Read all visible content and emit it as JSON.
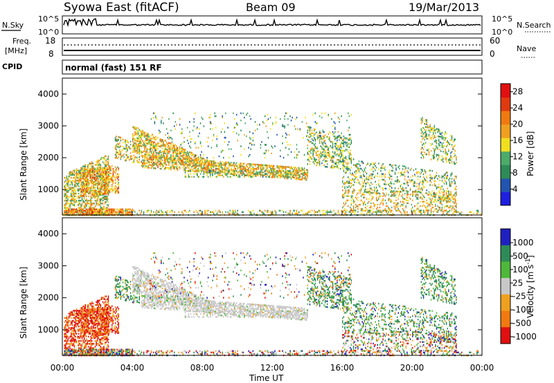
{
  "header": {
    "title": "Syowa East (fitACF)",
    "beam": "Beam 09",
    "date": "19/Mar/2013"
  },
  "top_panel": {
    "left_label": "N.Sky",
    "right_label": "N.Search",
    "scale_high": "10^5",
    "scale_low": "10^0"
  },
  "freq_panel": {
    "left_label_1": "Freq.",
    "left_label_2": "[MHz]",
    "left_ticks": [
      "18",
      "8"
    ],
    "right_ticks": [
      "60",
      "0"
    ],
    "right_label": "Nave"
  },
  "cpid_panel": {
    "label": "CPID",
    "value": "normal (fast) 151 RF"
  },
  "colors": {
    "power_scale": [
      "#1f1fe0",
      "#2255b0",
      "#2e8b57",
      "#4daa6a",
      "#f0e020",
      "#f0a020",
      "#f07a10",
      "#e03a10",
      "#e01010"
    ],
    "velocity_scale": [
      "#2020c0",
      "#2e8b57",
      "#4fb83a",
      "#c8c8c8",
      "#f0a020",
      "#f07a10",
      "#e01010"
    ]
  },
  "chart_data": [
    {
      "type": "heatmap",
      "name": "Power",
      "xlabel": "",
      "ylabel": "Slant Range [km]",
      "ylim": [
        200,
        4500
      ],
      "y_ticks": [
        "4000",
        "3000",
        "2000",
        "1000"
      ],
      "colorbar_label": "Power [dB]",
      "colorbar_ticks": [
        "28",
        "24",
        "20",
        "16",
        "12",
        "8",
        "4"
      ],
      "colorbar_range": [
        0,
        30
      ]
    },
    {
      "type": "heatmap",
      "name": "Velocity",
      "xlabel": "Time UT",
      "ylabel": "Slant Range [km]",
      "ylim": [
        200,
        4500
      ],
      "y_ticks": [
        "4000",
        "3000",
        "2000",
        "1000"
      ],
      "x_ticks": [
        "00:00",
        "04:00",
        "08:00",
        "12:00",
        "16:00",
        "20:00",
        "00:00"
      ],
      "colorbar_label": "Velocity [m s^-1]",
      "colorbar_ticks": [
        "1000",
        "500",
        "100",
        "25",
        "-25",
        "-100",
        "-500",
        "-1000"
      ]
    }
  ]
}
